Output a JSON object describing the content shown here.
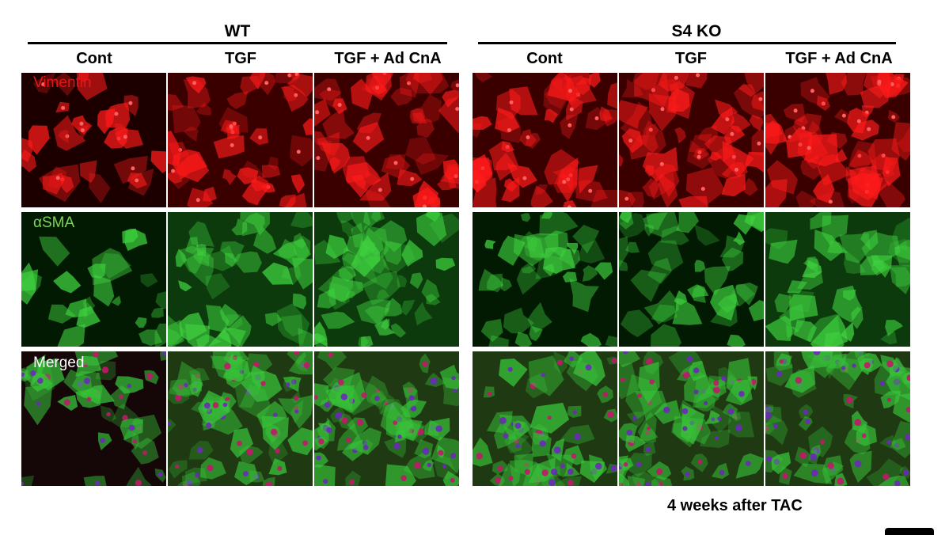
{
  "groups": [
    {
      "title": "WT",
      "columns": [
        "Cont",
        "TGF",
        "TGF + Ad CnA"
      ]
    },
    {
      "title": "S4 KO",
      "columns": [
        "Cont",
        "TGF",
        "TGF + Ad CnA"
      ]
    }
  ],
  "rows": [
    {
      "label": "Vimentin",
      "label_color": "#e01818",
      "channel": "red"
    },
    {
      "label": "αSMA",
      "label_color": "#7fd35a",
      "channel": "green"
    },
    {
      "label": "Merged",
      "label_color": "#ffffff",
      "channel": "merged"
    }
  ],
  "footer": "4 weeks after TAC"
}
